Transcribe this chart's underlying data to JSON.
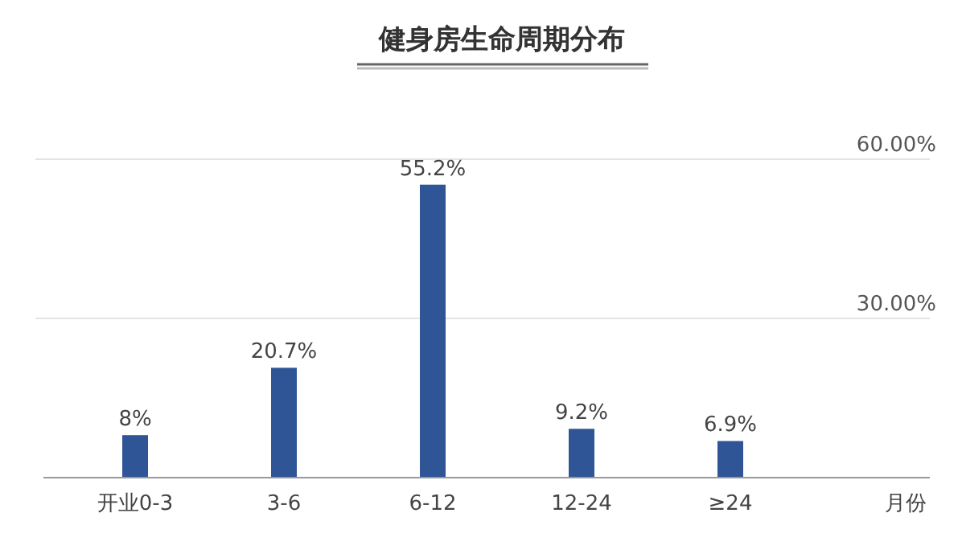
{
  "chart_data": {
    "type": "bar",
    "title": "健身房生命周期分布",
    "categories": [
      "开业0-3",
      "3-6",
      "6-12",
      "12-24",
      "≥24"
    ],
    "values": [
      8,
      20.7,
      55.2,
      9.2,
      6.9
    ],
    "value_labels": [
      "8%",
      "20.7%",
      "55.2%",
      "9.2%",
      "6.9%"
    ],
    "color": "#2f5597",
    "xlabel": "月份",
    "ylim": [
      0,
      60
    ],
    "yticks": [
      {
        "value": 0,
        "label": null
      },
      {
        "value": 30,
        "label": "30.00%"
      },
      {
        "value": 60,
        "label": "60.00%"
      }
    ],
    "grid": "y"
  }
}
